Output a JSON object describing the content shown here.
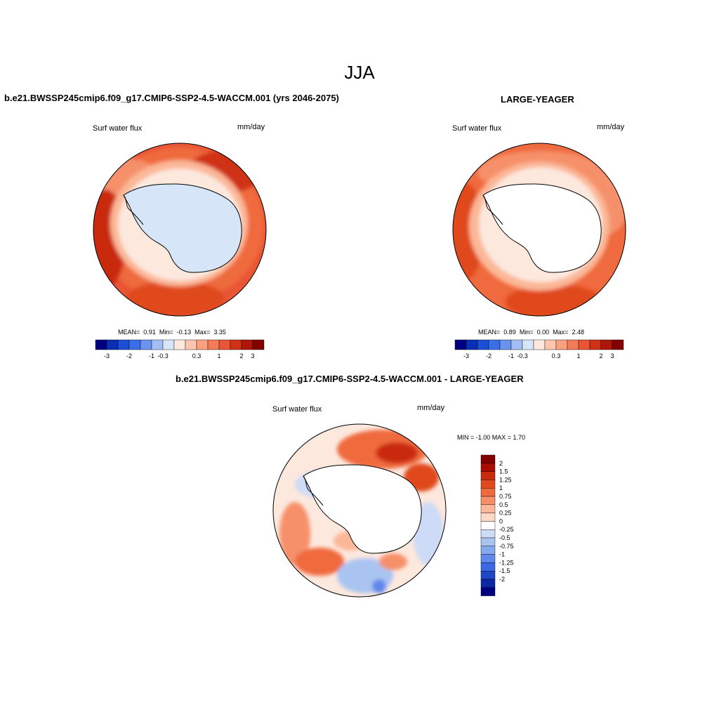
{
  "page": {
    "title": "JJA",
    "left_panel_title": "b.e21.BWSSP245cmip6.f09_g17.CMIP6-SSP2-4.5-WACCM.001 (yrs 2046-2075)",
    "right_panel_title": "LARGE-YEAGER",
    "diff_panel_title": "b.e21.BWSSP245cmip6.f09_g17.CMIP6-SSP2-4.5-WACCM.001 - LARGE-YEAGER"
  },
  "panels": {
    "left": {
      "variable": "Surf water flux",
      "units": "mm/day",
      "stats": {
        "mean_label": "MEAN=",
        "mean": "0.91",
        "min_label": "Min=",
        "min": "-0.13",
        "max_label": "Max=",
        "max": "3.35"
      }
    },
    "right": {
      "variable": "Surf water flux",
      "units": "mm/day",
      "stats": {
        "mean_label": "MEAN=",
        "mean": "0.89",
        "min_label": "Min=",
        "min": "0.00",
        "max_label": "Max=",
        "max": "2.48"
      }
    },
    "diff": {
      "variable": "Surf water flux",
      "units": "mm/day",
      "minmax": "MIN =  -1.00 MAX =   1.70"
    }
  },
  "colorbar_horizontal": {
    "colors": [
      "#00007f",
      "#0a2fb4",
      "#1b4fd6",
      "#3a6ee8",
      "#6a93f0",
      "#a3bdf5",
      "#d6e5f7",
      "#fde8de",
      "#fdc5ad",
      "#f9a07f",
      "#f47b57",
      "#e95535",
      "#d03218",
      "#ad1608",
      "#820000"
    ],
    "tick_labels": [
      "-3",
      "-2",
      "-1",
      "-0.3",
      "0.3",
      "1",
      "2",
      "3"
    ]
  },
  "colorbar_vertical": {
    "colors": [
      "#820000",
      "#a90d02",
      "#c92a0c",
      "#e04a1e",
      "#ef6a3e",
      "#f6906b",
      "#fbb797",
      "#fdd9c5",
      "#ffffff",
      "#cddbf6",
      "#aac4f2",
      "#86a8ee",
      "#5f88ea",
      "#3d68e3",
      "#2147c9",
      "#0c27a4",
      "#000080"
    ],
    "tick_labels": [
      "2",
      "1.5",
      "1.25",
      "1",
      "0.75",
      "0.5",
      "0.25",
      "0",
      "-0.25",
      "-0.5",
      "-0.75",
      "-1",
      "-1.25",
      "-1.5",
      "-2"
    ]
  },
  "colors": {
    "deep_red": "#c92a0c",
    "mid_red": "#ef6a3e",
    "salmon": "#fbb797",
    "peach": "#fde8de",
    "light_blue": "#d6e5f7",
    "blue": "#86a8ee",
    "land_white": "#ffffff"
  }
}
